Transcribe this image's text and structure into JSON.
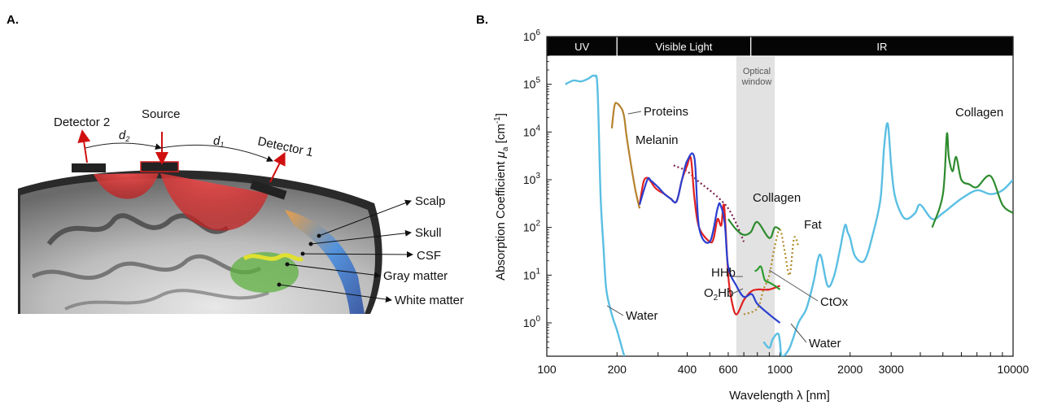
{
  "panel_a": {
    "label": "A.",
    "detector2": "Detector 2",
    "source": "Source",
    "detector1": "Detector 1",
    "d2": "d",
    "d2_sub": "2",
    "d1": "d",
    "d1_sub": "1",
    "layers": [
      "Scalp",
      "Skull",
      "CSF",
      "Gray matter",
      "White matter"
    ]
  },
  "panel_b": {
    "label": "B.",
    "bands": [
      {
        "name": "UV"
      },
      {
        "name": "Visible Light"
      },
      {
        "name": "IR"
      }
    ],
    "optical_window": {
      "line1": "Optical",
      "line2": "window"
    },
    "ylabel_main": "Absorption Coefficient ",
    "ylabel_mu": "μ",
    "ylabel_sub": "a",
    "ylabel_unit": " [cm",
    "ylabel_exp": "-1",
    "ylabel_close": "]",
    "xlabel": "Wavelength λ [nm]",
    "labels": {
      "proteins": "Proteins",
      "melanin": "Melanin",
      "collagen_mid": "Collagen",
      "collagen_ir": "Collagen",
      "fat": "Fat",
      "hhb": "HHb",
      "o2hb_o": "O",
      "o2hb_sub": "2",
      "o2hb_hb": "Hb",
      "ctox": "CtOx",
      "water_left": "Water",
      "water_right": "Water"
    }
  },
  "chart_data": {
    "type": "line",
    "xscale": "log",
    "yscale": "log",
    "xlim": [
      100,
      10000
    ],
    "ylim": [
      0.2,
      1000000
    ],
    "xticks": [
      "100",
      "200",
      "400",
      "600",
      "1000",
      "2000",
      "3000",
      "10000"
    ],
    "yticks": [
      "10",
      "10",
      "10",
      "10",
      "10",
      "10",
      "10"
    ],
    "ytick_exps": [
      "0",
      "1",
      "2",
      "3",
      "4",
      "5",
      "6"
    ],
    "optical_window_range": [
      650,
      950
    ],
    "band_ranges": {
      "UV": [
        100,
        200
      ],
      "Visible Light": [
        200,
        750
      ],
      "IR": [
        750,
        10000
      ]
    },
    "colors": {
      "water": "#5bbfe3",
      "proteins": "#b5822e",
      "melanin": "#7a1f4e",
      "o2hb": "#e02020",
      "hhb": "#2a3fd0",
      "collagen": "#2e8b2e",
      "fat": "#b08a2a",
      "ctox": "#2e9b2e"
    },
    "series": [
      {
        "name": "Water",
        "x": [
          120,
          130,
          140,
          150,
          160,
          165,
          170,
          175,
          180,
          190,
          200,
          210,
          215
        ],
        "y": [
          100000,
          120000,
          115000,
          130000,
          150000,
          80000,
          500,
          40,
          5,
          1.5,
          0.7,
          0.3,
          0.2
        ]
      },
      {
        "name": "Water",
        "x": [
          850,
          900,
          930,
          980,
          1000,
          1020,
          1100,
          1200,
          1300,
          1400,
          1450,
          1500,
          1600,
          1700,
          1800,
          1900,
          1950,
          2000,
          2100,
          2300,
          2500,
          2700,
          2800,
          2900,
          3000,
          3100,
          3300,
          3500,
          3800,
          4000,
          4500,
          5000,
          6000,
          7000,
          8000,
          9000,
          10000
        ],
        "y": [
          0.4,
          0.3,
          0.45,
          0.6,
          0.4,
          0.2,
          0.3,
          1,
          2,
          8,
          20,
          25,
          6,
          9,
          30,
          110,
          80,
          60,
          25,
          20,
          70,
          400,
          5000,
          15000,
          2000,
          500,
          200,
          150,
          200,
          300,
          150,
          200,
          400,
          600,
          500,
          600,
          1000
        ]
      },
      {
        "name": "Proteins",
        "x": [
          190,
          195,
          200,
          210,
          215,
          220,
          230,
          240,
          250
        ],
        "y": [
          12000,
          35000,
          40000,
          30000,
          20000,
          8000,
          2000,
          600,
          250
        ]
      },
      {
        "name": "Melanin",
        "x": [
          350,
          400,
          450,
          500,
          550,
          600,
          650,
          700
        ],
        "y": [
          2000,
          1500,
          900,
          600,
          400,
          250,
          120,
          50
        ]
      },
      {
        "name": "O2Hb",
        "x": [
          250,
          260,
          270,
          280,
          290,
          300,
          320,
          340,
          360,
          380,
          400,
          415,
          430,
          450,
          500,
          520,
          540,
          560,
          576,
          600,
          620,
          650,
          700,
          750,
          800,
          900,
          1000
        ],
        "y": [
          300,
          900,
          1100,
          900,
          700,
          600,
          500,
          400,
          350,
          1000,
          2000,
          2800,
          400,
          100,
          50,
          60,
          150,
          110,
          280,
          10,
          3,
          1.5,
          3,
          4.5,
          5,
          5,
          6
        ]
      },
      {
        "name": "HHb",
        "x": [
          250,
          270,
          280,
          300,
          320,
          340,
          360,
          380,
          400,
          430,
          450,
          500,
          540,
          555,
          580,
          600,
          650,
          700,
          757,
          800,
          900,
          1000
        ],
        "y": [
          300,
          1000,
          950,
          700,
          500,
          400,
          350,
          1000,
          2500,
          2800,
          100,
          50,
          250,
          300,
          120,
          15,
          6,
          3.5,
          4,
          2.5,
          1.5,
          1
        ]
      },
      {
        "name": "Collagen",
        "x": [
          600,
          650,
          700,
          750,
          800,
          900,
          950,
          1000
        ],
        "y": [
          150,
          90,
          70,
          80,
          130,
          60,
          100,
          90
        ]
      },
      {
        "name": "Fat",
        "x": [
          700,
          800,
          850,
          900,
          950,
          1000,
          1050,
          1100,
          1150,
          1200
        ],
        "y": [
          1.5,
          2,
          5,
          10,
          40,
          90,
          30,
          10,
          60,
          40
        ]
      },
      {
        "name": "CtOx",
        "x": [
          780,
          800,
          830,
          860,
          900,
          950,
          1000
        ],
        "y": [
          12,
          13,
          15,
          8,
          7,
          6,
          5
        ]
      },
      {
        "name": "Collagen",
        "x": [
          4500,
          5000,
          5200,
          5300,
          5500,
          5700,
          6000,
          6500,
          7000,
          8000,
          9000,
          10000
        ],
        "y": [
          100,
          500,
          9000,
          3000,
          1500,
          3000,
          1000,
          800,
          700,
          1200,
          300,
          200
        ]
      }
    ]
  }
}
